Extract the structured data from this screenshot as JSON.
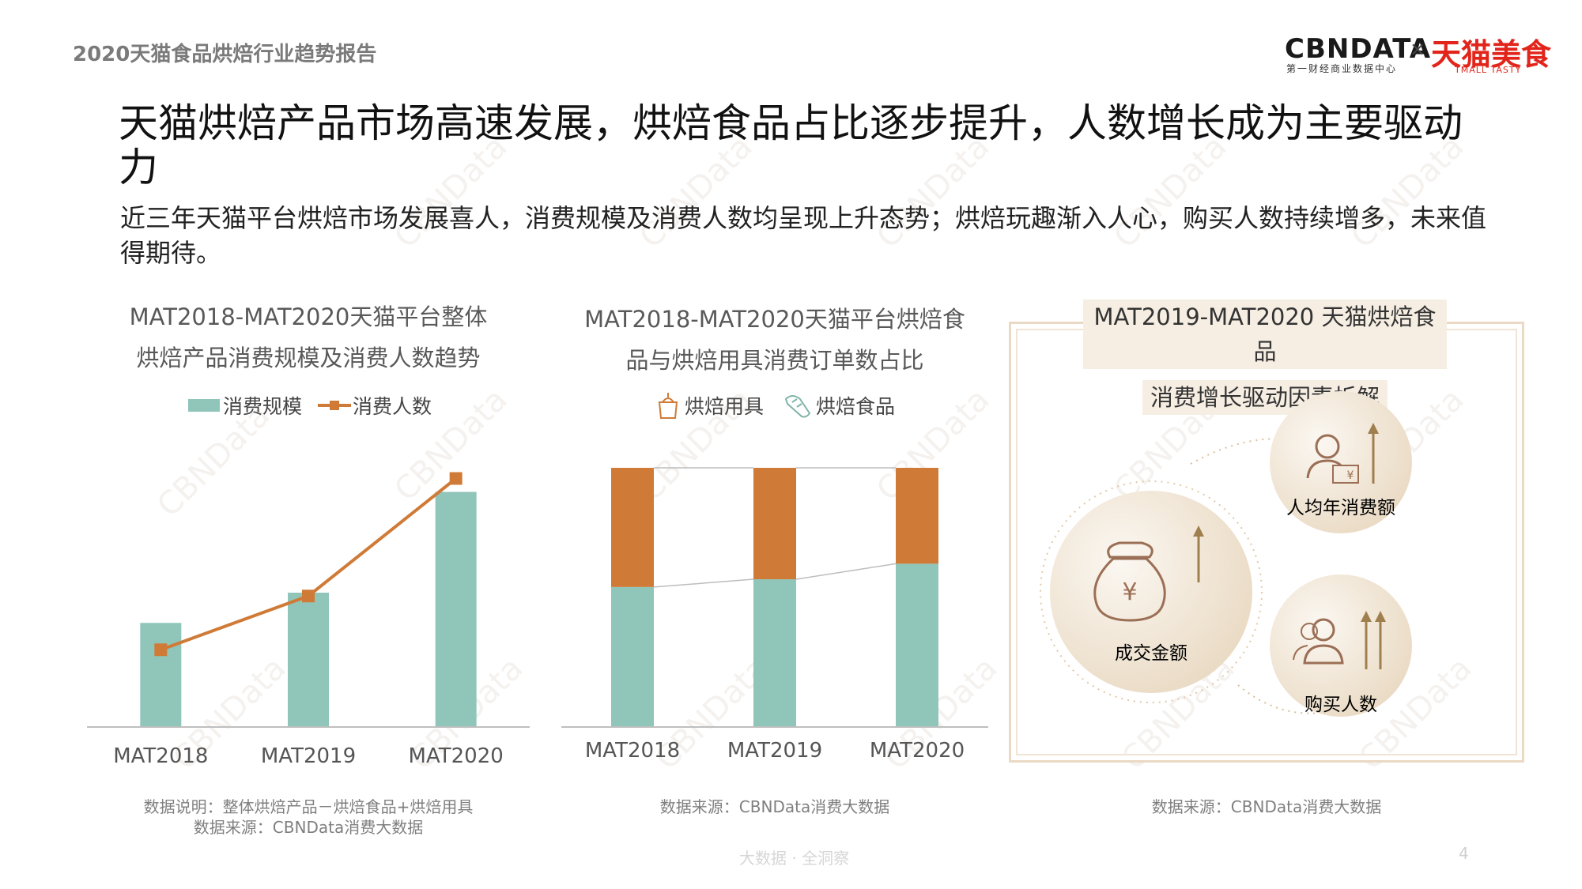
{
  "header": {
    "report_title": "2020天猫食品烘焙行业趋势报告",
    "logo_cbn": "CBNDATA",
    "logo_cbn_sub": "第一财经商业数据中心",
    "logo_x": "×",
    "logo_tmall": "天猫美食",
    "logo_tmall_sub": "TMALL TASTY"
  },
  "headline": "天猫烘焙产品市场高速发展，烘焙食品占比逐步提升，人数增长成为主要驱动力",
  "subline": "近三年天猫平台烘焙市场发展喜人，消费规模及消费人数均呈现上升态势；烘焙玩趣渐入人心，购买人数持续增多，未来值得期待。",
  "panel1": {
    "title_line1": "MAT2018-MAT2020天猫平台整体",
    "title_line2": "烘焙产品消费规模及消费人数趋势",
    "note_line1": "数据说明：整体烘焙产品－烘焙食品+烘焙用具",
    "note_line2": "数据来源：CBNData消费大数据"
  },
  "panel2": {
    "title_line1": "MAT2018-MAT2020天猫平台烘焙食",
    "title_line2": "品与烘焙用具消费订单数占比",
    "note": "数据来源：CBNData消费大数据"
  },
  "panel3": {
    "title_line1": "MAT2019-MAT2020 天猫烘焙食品",
    "title_line2": "消费增长驱动因素拆解",
    "big_circle_label": "成交金额",
    "top_circle_label": "人均年消费额",
    "bottom_circle_label": "购买人数",
    "note": "数据来源：CBNData消费大数据",
    "colors": {
      "circle": "#efe3d2",
      "arrow": "#a07f4e",
      "icon": "#9b6f55"
    }
  },
  "footer": {
    "text": "大数据 · 全洞察",
    "page": "4"
  },
  "watermark": "CBNData",
  "chart_data": [
    {
      "type": "bar",
      "categories": [
        "MAT2018",
        "MAT2019",
        "MAT2020"
      ],
      "series": [
        {
          "name": "消费规模",
          "kind": "bar",
          "color": "#90c5ba",
          "values": [
            31,
            40,
            70
          ]
        },
        {
          "name": "消费人数",
          "kind": "line",
          "color": "#cf7b37",
          "values": [
            23,
            39,
            74
          ]
        }
      ],
      "ylim": [
        0,
        80
      ],
      "grid": false,
      "legend": "top"
    },
    {
      "type": "bar",
      "stacked": true,
      "percent": true,
      "categories": [
        "MAT2018",
        "MAT2019",
        "MAT2020"
      ],
      "series": [
        {
          "name": "烘焙食品",
          "color": "#90c5ba",
          "values": [
            54,
            57,
            63
          ]
        },
        {
          "name": "烘焙用具",
          "color": "#cf7b37",
          "values": [
            46,
            43,
            37
          ]
        }
      ],
      "ylim": [
        0,
        100
      ],
      "grid": false,
      "legend": "top"
    }
  ]
}
